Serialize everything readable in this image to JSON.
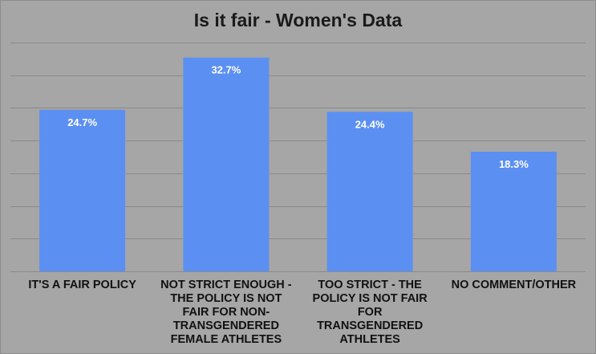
{
  "chart_data": {
    "type": "bar",
    "title": "Is it fair - Women's Data",
    "xlabel": "",
    "ylabel": "",
    "categories": [
      "IT'S A FAIR POLICY",
      "NOT STRICT ENOUGH - THE POLICY IS NOT FAIR FOR NON-TRANSGENDERED FEMALE ATHLETES",
      "TOO STRICT - THE POLICY IS NOT FAIR FOR TRANSGENDERED ATHLETES",
      "NO COMMENT/OTHER"
    ],
    "values": [
      24.7,
      32.7,
      24.4,
      18.3
    ],
    "data_labels": [
      "24.7%",
      "32.7%",
      "24.4%",
      "18.3%"
    ],
    "ylim": [
      0,
      35
    ],
    "grid": true,
    "bar_color": "#5b8ff2",
    "background_color": "#a6a6a6",
    "gridline_color": "#8a8a8a"
  }
}
